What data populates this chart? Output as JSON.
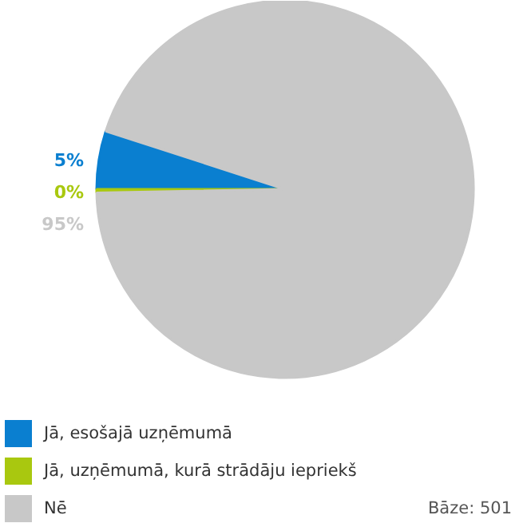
{
  "chart_data": {
    "type": "pie",
    "categories": [
      "Jā, esošajā uzņēmumā",
      "Jā, uzņēmumā, kurā strādāju iepriekš",
      "Nē"
    ],
    "values": [
      5,
      0.3,
      95
    ],
    "colors": [
      "#0a7fd0",
      "#a9c80f",
      "#c8c8c8"
    ],
    "value_labels": [
      "5%",
      "0%",
      "95%"
    ],
    "legend": "bottom",
    "annotations": [
      "Bāze: 501"
    ]
  }
}
